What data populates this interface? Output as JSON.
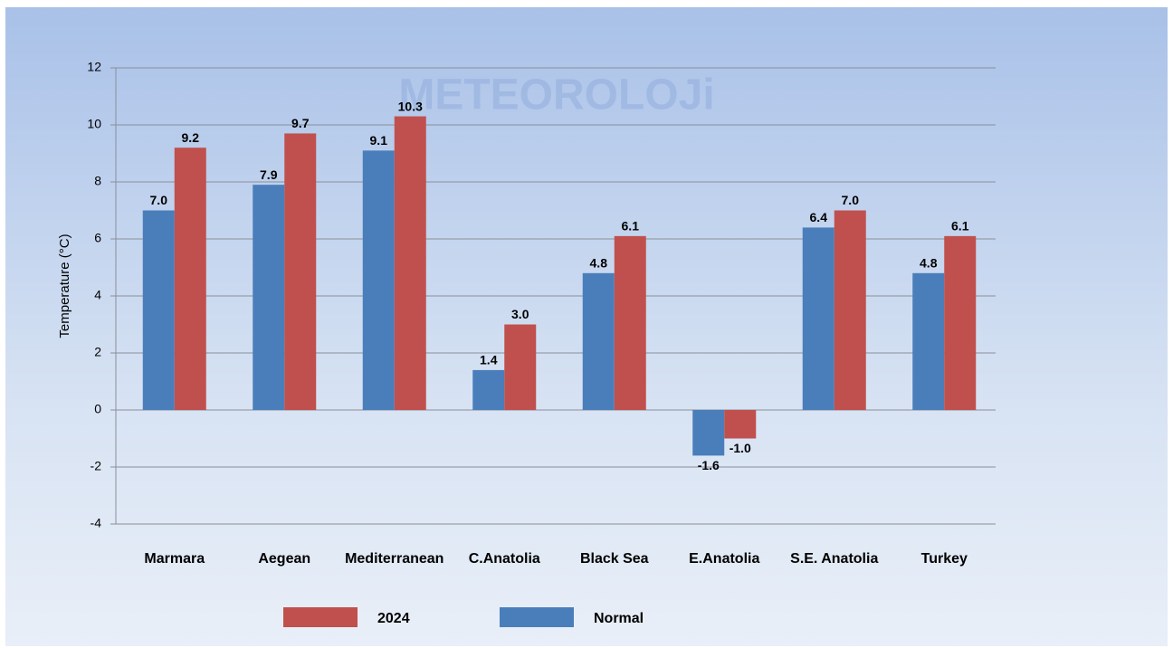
{
  "chart_data": {
    "type": "bar",
    "watermark": "METEOROLOJi",
    "y_label": "Temperature (°C)",
    "categories": [
      "Marmara",
      "Aegean",
      "Mediterranean",
      "C.Anatolia",
      "Black Sea",
      "E.Anatolia",
      "S.E. Anatolia",
      "Turkey"
    ],
    "series": [
      {
        "name": "Normal",
        "color": "#4a7ebb",
        "values": [
          7.0,
          7.9,
          9.1,
          1.4,
          4.8,
          -1.6,
          6.4,
          4.8
        ],
        "value_labels": [
          "7.0",
          "7.9",
          "9.1",
          "1.4",
          "4.8",
          "-1.6",
          "6.4",
          "4.8"
        ]
      },
      {
        "name": "2024",
        "color": "#c0504d",
        "values": [
          9.2,
          9.7,
          10.3,
          3.0,
          6.1,
          -1.0,
          7.0,
          6.1
        ],
        "value_labels": [
          "9.2",
          "9.7",
          "10.3",
          "3.0",
          "6.1",
          "-1.0",
          "7.0",
          "6.1"
        ]
      }
    ],
    "ylim": [
      -4,
      12
    ],
    "yticks": [
      -4,
      -2,
      0,
      2,
      4,
      6,
      8,
      10,
      12
    ],
    "grid": true,
    "legend": "bottom"
  }
}
